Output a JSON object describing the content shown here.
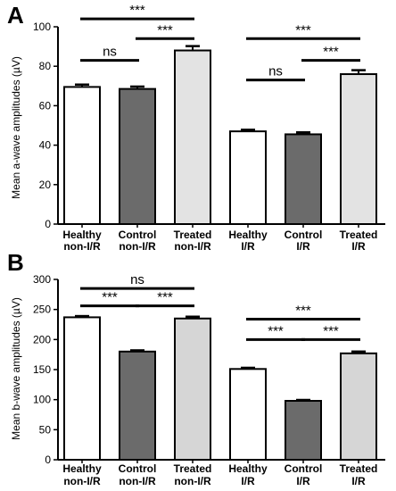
{
  "chart_data": [
    {
      "type": "bar",
      "panel": "A",
      "title": "",
      "ylabel": "Mean a-wave amplitudes (µV)",
      "xlabel": "",
      "ylim": [
        0,
        100
      ],
      "yticks": [
        0,
        20,
        40,
        60,
        80,
        100
      ],
      "categories": [
        [
          "Healthy",
          "non-I/R"
        ],
        [
          "Control",
          "non-I/R"
        ],
        [
          "Treated",
          "non-I/R"
        ],
        [
          "Healthy",
          "I/R"
        ],
        [
          "Control",
          "I/R"
        ],
        [
          "Treated",
          "I/R"
        ]
      ],
      "values": [
        69.5,
        68.5,
        88,
        47,
        45.5,
        76
      ],
      "errors": [
        1.2,
        1.2,
        2.2,
        0.8,
        1.0,
        2.0
      ],
      "fills": [
        "#ffffff",
        "#6b6b6b",
        "#e3e3e3",
        "#ffffff",
        "#6b6b6b",
        "#e3e3e3"
      ],
      "significance": [
        {
          "from": 0,
          "to": 1,
          "label": "ns",
          "y": 83
        },
        {
          "from": 1,
          "to": 2,
          "label": "***",
          "y": 94
        },
        {
          "from": 0,
          "to": 2,
          "label": "***",
          "y": 104
        },
        {
          "from": 3,
          "to": 4,
          "label": "ns",
          "y": 73
        },
        {
          "from": 4,
          "to": 5,
          "label": "***",
          "y": 83
        },
        {
          "from": 3,
          "to": 5,
          "label": "***",
          "y": 94
        }
      ]
    },
    {
      "type": "bar",
      "panel": "B",
      "title": "",
      "ylabel": "Mean b-wave amplitudes (µV)",
      "xlabel": "",
      "ylim": [
        0,
        300
      ],
      "yticks": [
        0,
        50,
        100,
        150,
        200,
        250,
        300
      ],
      "categories": [
        [
          "Healthy",
          "non-I/R"
        ],
        [
          "Control",
          "non-I/R"
        ],
        [
          "Treated",
          "non-I/R"
        ],
        [
          "Healthy",
          "I/R"
        ],
        [
          "Control",
          "I/R"
        ],
        [
          "Treated",
          "I/R"
        ]
      ],
      "values": [
        237,
        180,
        235,
        151,
        98,
        177
      ],
      "errors": [
        2,
        2,
        3,
        2,
        1.5,
        3
      ],
      "fills": [
        "#ffffff",
        "#6b6b6b",
        "#d6d6d6",
        "#ffffff",
        "#6b6b6b",
        "#d6d6d6"
      ],
      "significance": [
        {
          "from": 0,
          "to": 1,
          "label": "***",
          "y": 256
        },
        {
          "from": 1,
          "to": 2,
          "label": "***",
          "y": 256
        },
        {
          "from": 0,
          "to": 2,
          "label": "ns",
          "y": 285
        },
        {
          "from": 3,
          "to": 4,
          "label": "***",
          "y": 200
        },
        {
          "from": 4,
          "to": 5,
          "label": "***",
          "y": 200
        },
        {
          "from": 3,
          "to": 5,
          "label": "***",
          "y": 234
        }
      ]
    }
  ]
}
